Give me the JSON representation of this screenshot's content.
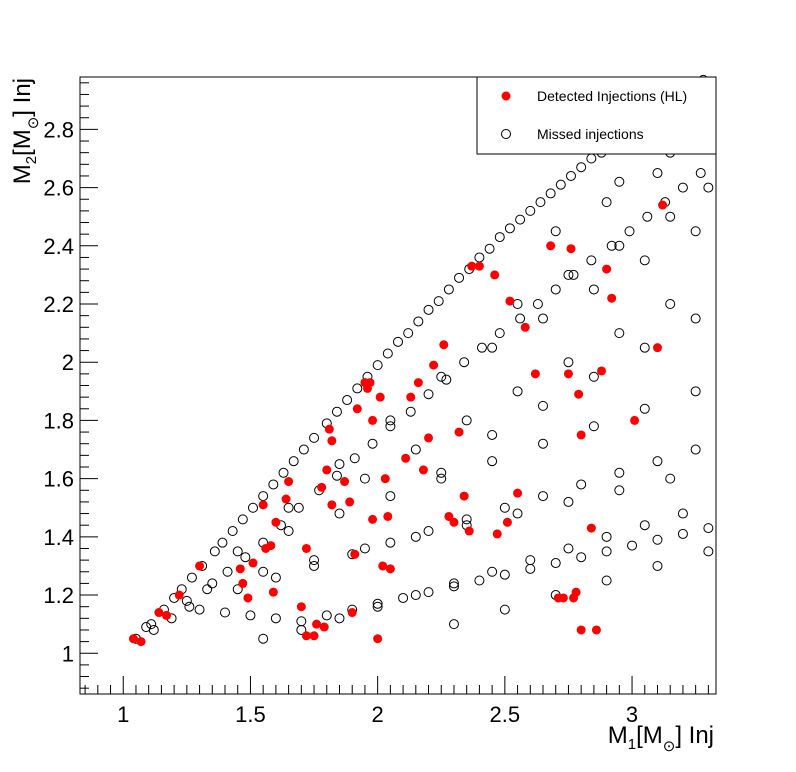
{
  "chart_data": {
    "type": "scatter",
    "xlabel": "M1[M⊙] Inj",
    "ylabel": "M2[M⊙] Inj",
    "x_axis": {
      "base": "M",
      "sub": "1",
      "bracket_open": "[M",
      "sun": "⊙",
      "bracket_close": "] Inj"
    },
    "y_axis": {
      "base": "M",
      "sub": "2",
      "bracket_open": "[M",
      "sun": "⊙",
      "bracket_close": "] Inj"
    },
    "xlim": [
      0.83,
      3.33
    ],
    "ylim": [
      0.86,
      2.98
    ],
    "xticks": [
      "1",
      "1.5",
      "2",
      "2.5",
      "3"
    ],
    "yticks": [
      "1",
      "1.2",
      "1.4",
      "1.6",
      "1.8",
      "2",
      "2.2",
      "2.4",
      "2.6",
      "2.8"
    ],
    "legend_position": "top-right",
    "colors": {
      "detected": "#ff0000",
      "missed": "#000000"
    },
    "series": [
      {
        "name": "Detected Injections (HL)",
        "marker": "filled-circle",
        "x": [
          1.04,
          1.07,
          1.14,
          1.17,
          1.22,
          1.3,
          1.46,
          1.47,
          1.49,
          1.51,
          1.55,
          1.56,
          1.58,
          1.59,
          1.6,
          1.64,
          1.65,
          1.7,
          1.72,
          1.72,
          1.75,
          1.76,
          1.78,
          1.79,
          1.8,
          1.81,
          1.82,
          1.82,
          1.87,
          1.89,
          1.9,
          1.91,
          1.92,
          1.95,
          1.96,
          1.97,
          1.98,
          1.98,
          2.0,
          2.01,
          2.02,
          2.03,
          2.04,
          2.05,
          2.11,
          2.13,
          2.16,
          2.18,
          2.2,
          2.22,
          2.26,
          2.28,
          2.3,
          2.32,
          2.34,
          2.36,
          2.37,
          2.4,
          2.46,
          2.47,
          2.51,
          2.52,
          2.55,
          2.58,
          2.62,
          2.68,
          2.71,
          2.73,
          2.75,
          2.76,
          2.77,
          2.78,
          2.79,
          2.8,
          2.8,
          2.84,
          2.86,
          2.88,
          2.9,
          2.92,
          3.01,
          3.1,
          3.12
        ],
        "y": [
          1.05,
          1.04,
          1.14,
          1.13,
          1.2,
          1.3,
          1.29,
          1.24,
          1.19,
          1.31,
          1.51,
          1.36,
          1.37,
          1.21,
          1.45,
          1.53,
          1.59,
          1.16,
          1.06,
          1.36,
          1.06,
          1.1,
          1.57,
          1.09,
          1.63,
          1.77,
          1.73,
          1.51,
          1.59,
          1.52,
          1.14,
          1.34,
          1.84,
          1.93,
          1.91,
          1.93,
          1.8,
          1.46,
          1.05,
          1.88,
          1.3,
          1.6,
          1.47,
          1.29,
          1.67,
          1.88,
          1.93,
          1.63,
          1.74,
          1.99,
          2.06,
          1.47,
          1.45,
          1.76,
          1.54,
          1.42,
          2.33,
          2.33,
          2.3,
          1.41,
          1.45,
          2.21,
          1.55,
          2.12,
          1.96,
          2.4,
          1.19,
          1.19,
          1.96,
          2.39,
          1.19,
          1.21,
          1.89,
          1.08,
          1.75,
          1.43,
          1.08,
          1.97,
          2.32,
          2.22,
          1.8,
          2.05,
          2.54
        ]
      },
      {
        "name": "Missed injections",
        "marker": "open-circle",
        "x": [
          1.05,
          1.09,
          1.11,
          1.16,
          1.2,
          1.23,
          1.27,
          1.31,
          1.36,
          1.39,
          1.43,
          1.47,
          1.51,
          1.55,
          1.59,
          1.63,
          1.67,
          1.71,
          1.75,
          1.8,
          1.84,
          1.88,
          1.92,
          1.96,
          2.0,
          2.04,
          2.08,
          2.12,
          2.16,
          2.2,
          2.24,
          2.28,
          2.32,
          2.36,
          2.4,
          2.44,
          2.48,
          2.52,
          2.56,
          2.6,
          2.64,
          2.68,
          2.72,
          2.76,
          2.8,
          2.84,
          2.88,
          2.92,
          2.96,
          3.0,
          3.04,
          3.08,
          3.12,
          3.16,
          3.2,
          3.24,
          3.28,
          3.31,
          1.12,
          1.19,
          1.26,
          1.33,
          1.41,
          1.48,
          1.55,
          1.62,
          1.69,
          1.77,
          1.84,
          1.91,
          1.98,
          2.05,
          2.13,
          2.2,
          2.27,
          2.34,
          2.41,
          2.48,
          2.56,
          2.63,
          2.7,
          2.77,
          2.84,
          2.92,
          2.99,
          3.06,
          3.13,
          3.2,
          3.27,
          1.3,
          1.4,
          1.5,
          1.6,
          1.7,
          1.8,
          1.9,
          2.0,
          2.1,
          2.2,
          2.3,
          2.4,
          2.5,
          2.6,
          2.7,
          2.8,
          2.9,
          3.0,
          3.1,
          3.2,
          3.3,
          1.45,
          1.6,
          1.75,
          1.9,
          2.05,
          2.2,
          2.35,
          2.5,
          2.65,
          2.8,
          2.95,
          3.1,
          3.25,
          1.65,
          1.85,
          2.05,
          2.25,
          2.45,
          2.65,
          2.85,
          3.05,
          3.25,
          1.95,
          2.15,
          2.35,
          2.55,
          2.75,
          2.95,
          3.15,
          2.25,
          2.45,
          2.65,
          2.85,
          3.05,
          3.25,
          2.55,
          2.75,
          2.95,
          3.15,
          3.3,
          2.7,
          2.9,
          3.1,
          3.3,
          2.95,
          3.15,
          3.3,
          3.05,
          3.2,
          3.3,
          2.3,
          2.5,
          2.7,
          2.9,
          3.1,
          3.3,
          1.55,
          1.7,
          1.85,
          2.0,
          2.15,
          2.3,
          2.45,
          2.6,
          2.75,
          2.9,
          3.05,
          3.2,
          1.35,
          1.55,
          1.75,
          1.95,
          2.15,
          2.35,
          2.55,
          2.75,
          2.95,
          3.15,
          1.25,
          1.45,
          1.65,
          1.85,
          2.05,
          2.25,
          2.45,
          2.65,
          2.85,
          3.05,
          3.25
        ],
        "y": [
          1.05,
          1.09,
          1.1,
          1.15,
          1.19,
          1.22,
          1.26,
          1.3,
          1.35,
          1.38,
          1.42,
          1.46,
          1.5,
          1.54,
          1.58,
          1.62,
          1.66,
          1.7,
          1.74,
          1.79,
          1.83,
          1.87,
          1.91,
          1.95,
          1.99,
          2.03,
          2.07,
          2.1,
          2.14,
          2.18,
          2.21,
          2.25,
          2.29,
          2.32,
          2.36,
          2.39,
          2.43,
          2.46,
          2.49,
          2.52,
          2.55,
          2.58,
          2.61,
          2.64,
          2.67,
          2.7,
          2.72,
          2.75,
          2.78,
          2.8,
          2.83,
          2.85,
          2.88,
          2.9,
          2.93,
          2.95,
          2.97,
          2.95,
          1.08,
          1.12,
          1.16,
          1.22,
          1.28,
          1.33,
          1.38,
          1.44,
          1.5,
          1.56,
          1.61,
          1.67,
          1.72,
          1.78,
          1.83,
          1.89,
          1.94,
          2.0,
          2.05,
          2.1,
          2.15,
          2.2,
          2.25,
          2.3,
          2.35,
          2.4,
          2.45,
          2.5,
          2.55,
          2.6,
          2.65,
          1.15,
          1.14,
          1.13,
          1.12,
          1.11,
          1.13,
          1.15,
          1.17,
          1.19,
          1.21,
          1.23,
          1.25,
          1.27,
          1.29,
          1.31,
          1.33,
          1.35,
          1.37,
          1.39,
          1.41,
          1.43,
          1.22,
          1.26,
          1.3,
          1.34,
          1.38,
          1.42,
          1.46,
          1.5,
          1.54,
          1.58,
          1.62,
          1.66,
          1.7,
          1.42,
          1.48,
          1.54,
          1.6,
          1.66,
          1.72,
          1.78,
          1.84,
          1.9,
          1.6,
          1.7,
          1.8,
          1.9,
          2.0,
          2.1,
          2.2,
          1.95,
          2.05,
          2.15,
          2.25,
          2.35,
          2.45,
          2.2,
          2.3,
          2.4,
          2.5,
          2.6,
          2.45,
          2.55,
          2.65,
          2.75,
          2.62,
          2.72,
          2.82,
          2.85,
          2.9,
          2.85,
          1.1,
          1.15,
          1.2,
          1.25,
          1.3,
          1.35,
          1.05,
          1.08,
          1.12,
          1.16,
          1.2,
          1.24,
          1.28,
          1.32,
          1.36,
          1.4,
          1.44,
          1.48,
          1.24,
          1.28,
          1.32,
          1.36,
          1.4,
          1.44,
          1.48,
          1.52,
          1.56,
          1.6,
          1.18,
          1.35,
          1.5,
          1.65,
          1.8,
          1.62,
          1.75,
          1.85,
          1.95,
          2.05,
          2.15
        ]
      }
    ]
  },
  "legend": {
    "items": [
      "Detected Injections (HL)",
      "Missed injections"
    ]
  }
}
